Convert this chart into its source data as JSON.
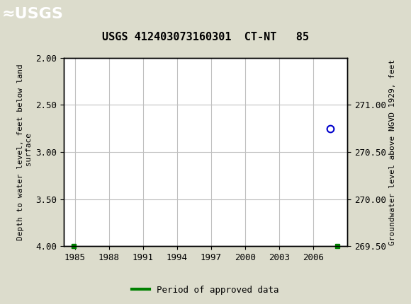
{
  "title": "USGS 412403073160301  CT-NT   85",
  "ylabel_left": "Depth to water level, feet below land\n surface",
  "ylabel_right": "Groundwater level above NGVD 1929, feet",
  "ylim_left": [
    2.0,
    4.0
  ],
  "ylim_right": [
    269.5,
    271.5
  ],
  "xlim": [
    1984,
    2009
  ],
  "xticks": [
    1985,
    1988,
    1991,
    1994,
    1997,
    2000,
    2003,
    2006
  ],
  "yticks_left": [
    2.0,
    2.5,
    3.0,
    3.5,
    4.0
  ],
  "yticks_right": [
    271.0,
    270.5,
    270.0,
    269.5
  ],
  "data_point_x": 2007.5,
  "data_point_y_left": 2.75,
  "data_point_color": "#0000cc",
  "green_marker_x1": 1984.85,
  "green_marker_y1": 4.0,
  "green_marker_x2": 2008.1,
  "green_marker_y2": 4.0,
  "header_bg_color": "#006633",
  "header_text_color": "#ffffff",
  "bg_color": "#dcdccc",
  "plot_bg_color": "#ffffff",
  "grid_color": "#c0c0c0",
  "legend_label": "Period of approved data",
  "legend_color": "#008000",
  "usgs_logo_text": "USGS",
  "title_fontsize": 11,
  "tick_fontsize": 9,
  "label_fontsize": 8
}
